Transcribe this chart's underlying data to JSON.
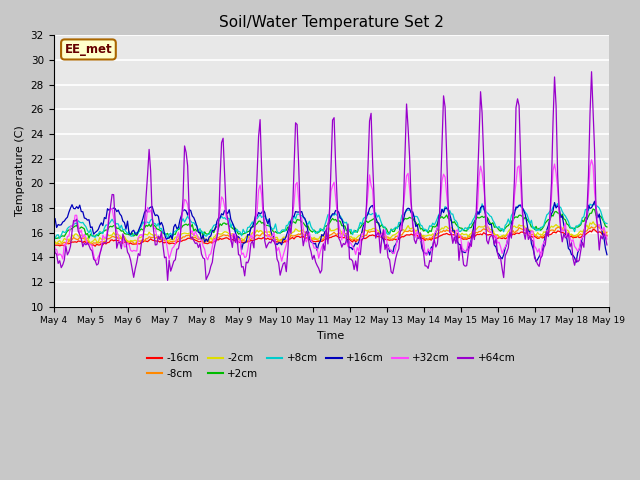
{
  "title": "Soil/Water Temperature Set 2",
  "xlabel": "Time",
  "ylabel": "Temperature (C)",
  "ylim": [
    10,
    32
  ],
  "yticks": [
    10,
    12,
    14,
    16,
    18,
    20,
    22,
    24,
    26,
    28,
    30,
    32
  ],
  "fig_bg_color": "#c8c8c8",
  "plot_bg_color": "#e8e8e8",
  "annotation_text": "EE_met",
  "annotation_bg": "#ffffcc",
  "annotation_border": "#aa6600",
  "series_colors": {
    "-16cm": "#ff0000",
    "-8cm": "#ff8800",
    "-2cm": "#dddd00",
    "+2cm": "#00bb00",
    "+8cm": "#00cccc",
    "+16cm": "#0000bb",
    "+32cm": "#ff44ff",
    "+64cm": "#9900cc"
  },
  "series_labels": [
    "-16cm",
    "-8cm",
    "-2cm",
    "+2cm",
    "+8cm",
    "+16cm",
    "+32cm",
    "+64cm"
  ],
  "n_points": 360,
  "x_tick_labels": [
    "May 4",
    "May 5",
    "May 6",
    "May 7",
    "May 8",
    "May 9",
    "May 10",
    "May 11",
    "May 12",
    "May 13",
    "May 14",
    "May 15",
    "May 16",
    "May 17",
    "May 18",
    "May 19"
  ],
  "x_tick_positions": [
    0,
    24,
    48,
    72,
    96,
    120,
    144,
    168,
    192,
    216,
    240,
    264,
    288,
    312,
    336,
    360
  ]
}
